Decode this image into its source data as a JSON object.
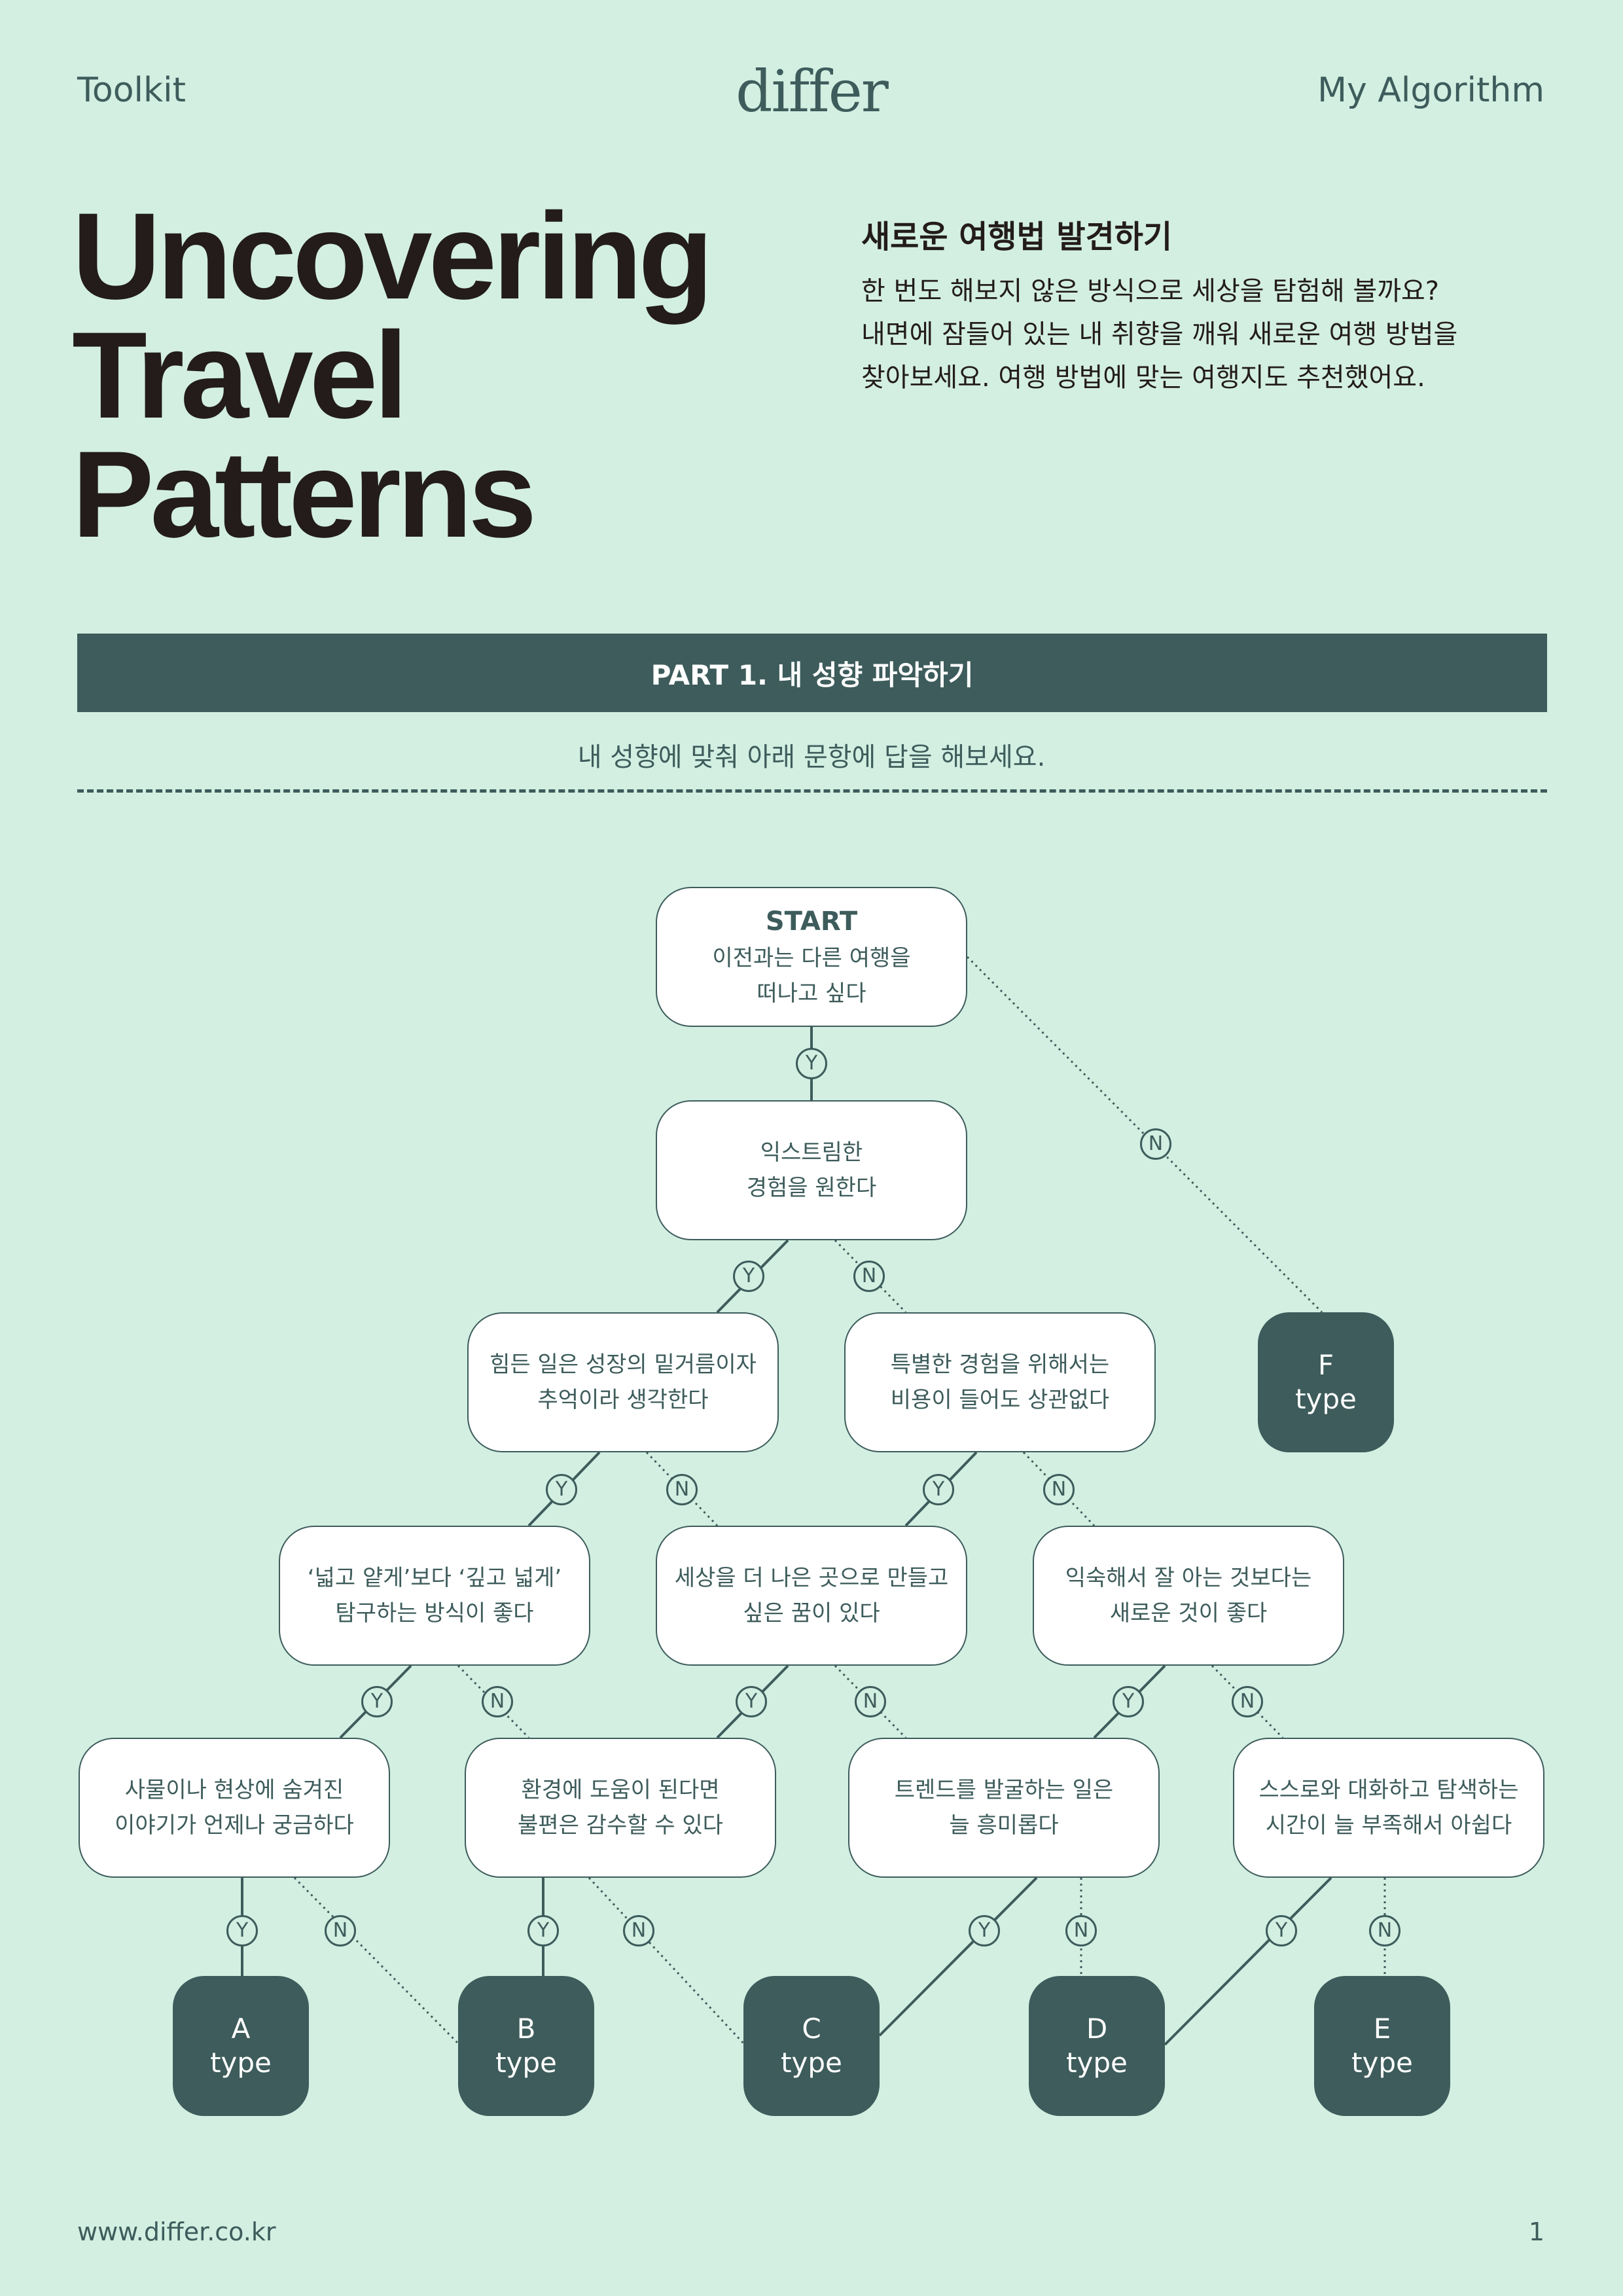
{
  "header": {
    "left": "Toolkit",
    "logo": "differ",
    "right": "My Algorithm"
  },
  "title_lines": [
    "Uncovering",
    "Travel",
    "Patterns"
  ],
  "intro": {
    "heading": "새로운 여행법 발견하기",
    "lines": [
      "한 번도 해보지 않은 방식으로 세상을 탐험해 볼까요?",
      "내면에 잠들어 있는 내 취향을 깨워 새로운 여행 방법을",
      "찾아보세요. 여행 방법에 맞는 여행지도 추천했어요."
    ]
  },
  "part": {
    "label": "PART 1. 내 성향 파악하기",
    "instruction": "내 성향에 맞춰 아래 문항에 답을 해보세요."
  },
  "flow": {
    "yes_label": "Y",
    "no_label": "N",
    "start_label": "START",
    "questions": [
      {
        "id": "q0",
        "lines": [
          "이전과는 다른 여행을",
          "떠나고 싶다"
        ]
      },
      {
        "id": "q1",
        "lines": [
          "익스트림한",
          "경험을 원한다"
        ]
      },
      {
        "id": "q2",
        "lines": [
          "힘든 일은 성장의 밑거름이자",
          "추억이라 생각한다"
        ]
      },
      {
        "id": "q3",
        "lines": [
          "특별한 경험을 위해서는",
          "비용이 들어도 상관없다"
        ]
      },
      {
        "id": "q4",
        "lines": [
          "‘넓고 얕게’보다 ‘깊고 넓게’",
          "탐구하는 방식이 좋다"
        ]
      },
      {
        "id": "q5",
        "lines": [
          "세상을 더 나은 곳으로 만들고",
          "싶은 꿈이 있다"
        ]
      },
      {
        "id": "q6",
        "lines": [
          "익숙해서 잘 아는 것보다는",
          "새로운 것이 좋다"
        ]
      },
      {
        "id": "q7",
        "lines": [
          "사물이나 현상에 숨겨진",
          "이야기가 언제나 궁금하다"
        ]
      },
      {
        "id": "q8",
        "lines": [
          "환경에 도움이 된다면",
          "불편은 감수할 수 있다"
        ]
      },
      {
        "id": "q9",
        "lines": [
          "트렌드를 발굴하는 일은",
          "늘 흥미롭다"
        ]
      },
      {
        "id": "q10",
        "lines": [
          "스스로와 대화하고 탐색하는",
          "시간이 늘 부족해서 아쉽다"
        ]
      }
    ],
    "results": [
      {
        "id": "A",
        "letter": "A",
        "word": "type"
      },
      {
        "id": "B",
        "letter": "B",
        "word": "type"
      },
      {
        "id": "C",
        "letter": "C",
        "word": "type"
      },
      {
        "id": "D",
        "letter": "D",
        "word": "type"
      },
      {
        "id": "E",
        "letter": "E",
        "word": "type"
      },
      {
        "id": "F",
        "letter": "F",
        "word": "type"
      }
    ]
  },
  "footer": {
    "url": "www.differ.co.kr",
    "page": "1"
  },
  "colors": {
    "background": "#d3efe2",
    "primary": "#3d5c5b",
    "text_dark": "#231c1a",
    "node_fill": "#ffffff"
  }
}
